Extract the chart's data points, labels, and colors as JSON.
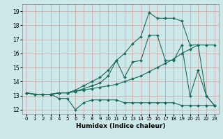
{
  "xlabel": "Humidex (Indice chaleur)",
  "bg_color": "#cce8e8",
  "grid_color": "#d4aaaa",
  "line_color": "#1a6b5a",
  "xlim": [
    -0.5,
    23.5
  ],
  "ylim": [
    11.7,
    19.5
  ],
  "xticks": [
    0,
    1,
    2,
    3,
    4,
    5,
    6,
    7,
    8,
    9,
    10,
    11,
    12,
    13,
    14,
    15,
    16,
    17,
    18,
    19,
    20,
    21,
    22,
    23
  ],
  "yticks": [
    12,
    13,
    14,
    15,
    16,
    17,
    18,
    19
  ],
  "series1_x": [
    0,
    1,
    2,
    3,
    4,
    5,
    6,
    7,
    8,
    9,
    10,
    11,
    12,
    13,
    14,
    15,
    16,
    17,
    18,
    19,
    20,
    21,
    22,
    23
  ],
  "series1_y": [
    13.2,
    13.1,
    13.1,
    13.1,
    12.8,
    12.8,
    12.0,
    12.5,
    12.7,
    12.7,
    12.7,
    12.7,
    12.5,
    12.5,
    12.5,
    12.5,
    12.5,
    12.5,
    12.5,
    12.3,
    12.3,
    12.3,
    12.3,
    12.3
  ],
  "series2_x": [
    0,
    1,
    2,
    3,
    4,
    5,
    6,
    7,
    8,
    9,
    10,
    11,
    12,
    13,
    14,
    15,
    16,
    17,
    18,
    19,
    20,
    21,
    22,
    23
  ],
  "series2_y": [
    13.2,
    13.1,
    13.1,
    13.1,
    13.2,
    13.2,
    13.3,
    13.4,
    13.5,
    13.6,
    13.7,
    13.8,
    14.0,
    14.2,
    14.4,
    14.7,
    15.0,
    15.3,
    15.6,
    16.0,
    16.3,
    16.6,
    16.6,
    16.6
  ],
  "series3_x": [
    0,
    1,
    2,
    3,
    4,
    5,
    6,
    7,
    8,
    9,
    10,
    11,
    12,
    13,
    14,
    15,
    16,
    17,
    18,
    19,
    20,
    21,
    22,
    23
  ],
  "series3_y": [
    13.2,
    13.1,
    13.1,
    13.1,
    13.2,
    13.2,
    13.3,
    13.5,
    13.7,
    13.9,
    14.4,
    15.5,
    14.3,
    15.4,
    15.5,
    17.3,
    17.3,
    15.5,
    15.5,
    16.6,
    13.0,
    14.8,
    13.0,
    12.3
  ],
  "series4_x": [
    0,
    1,
    2,
    3,
    4,
    5,
    6,
    7,
    8,
    9,
    10,
    11,
    12,
    13,
    14,
    15,
    16,
    17,
    18,
    19,
    20,
    21,
    22,
    23
  ],
  "series4_y": [
    13.2,
    13.1,
    13.1,
    13.1,
    13.2,
    13.2,
    13.4,
    13.7,
    14.0,
    14.3,
    14.8,
    15.5,
    16.0,
    16.7,
    17.2,
    18.9,
    18.5,
    18.5,
    18.5,
    18.3,
    16.6,
    16.6,
    13.0,
    12.3
  ]
}
